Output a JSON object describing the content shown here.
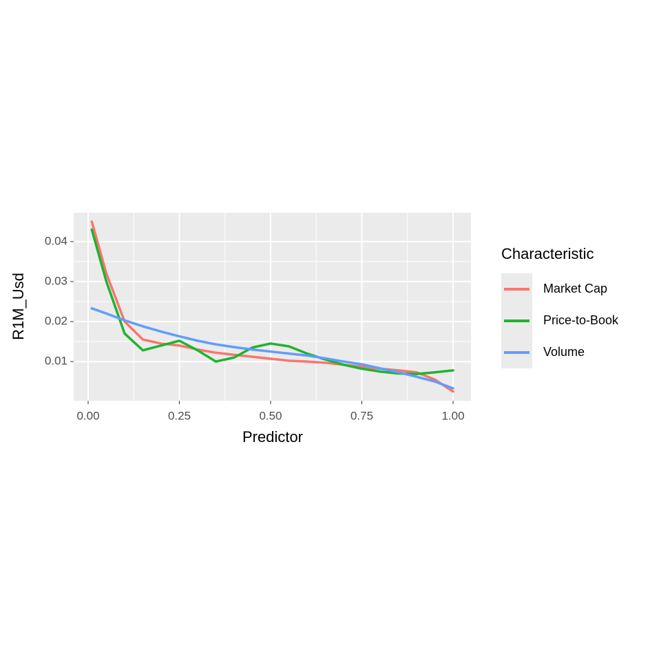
{
  "chart_data": {
    "type": "line",
    "x_label": "Predictor",
    "y_label": "R1M_Usd",
    "legend_title": "Characteristic",
    "legend_position": "right",
    "grid": true,
    "x": [
      0.01,
      0.05,
      0.1,
      0.15,
      0.2,
      0.25,
      0.3,
      0.35,
      0.4,
      0.45,
      0.5,
      0.55,
      0.6,
      0.65,
      0.7,
      0.75,
      0.8,
      0.85,
      0.9,
      0.95,
      1.0
    ],
    "series": [
      {
        "name": "Market Cap",
        "color": "#f8766d",
        "values": [
          0.045,
          0.032,
          0.02,
          0.0155,
          0.0145,
          0.014,
          0.013,
          0.0122,
          0.0117,
          0.0112,
          0.0107,
          0.0102,
          0.01,
          0.0097,
          0.0092,
          0.0087,
          0.0082,
          0.0078,
          0.0073,
          0.0055,
          0.0025
        ]
      },
      {
        "name": "Price-to-Book",
        "color": "#1fb32e",
        "values": [
          0.043,
          0.03,
          0.017,
          0.0128,
          0.014,
          0.0152,
          0.0128,
          0.01,
          0.011,
          0.0135,
          0.0145,
          0.0138,
          0.012,
          0.0105,
          0.0092,
          0.0082,
          0.0075,
          0.007,
          0.0069,
          0.0073,
          0.0078
        ]
      },
      {
        "name": "Volume",
        "color": "#619cff",
        "values": [
          0.0233,
          0.022,
          0.0203,
          0.0188,
          0.0175,
          0.0163,
          0.0152,
          0.0143,
          0.0136,
          0.013,
          0.0125,
          0.012,
          0.0115,
          0.0108,
          0.01,
          0.0093,
          0.0083,
          0.0073,
          0.0062,
          0.005,
          0.0033
        ]
      }
    ],
    "xlim": [
      -0.0396,
      1.049
    ],
    "ylim": [
      0.0002,
      0.0472
    ],
    "xticks": [
      {
        "value": 0,
        "label": "0.00"
      },
      0.25,
      {
        "value": 0.5,
        "label": "0.50"
      },
      0.75,
      {
        "value": 1,
        "label": "1.00"
      }
    ],
    "yticks": [
      0.01,
      0.02,
      0.03,
      0.04
    ]
  }
}
